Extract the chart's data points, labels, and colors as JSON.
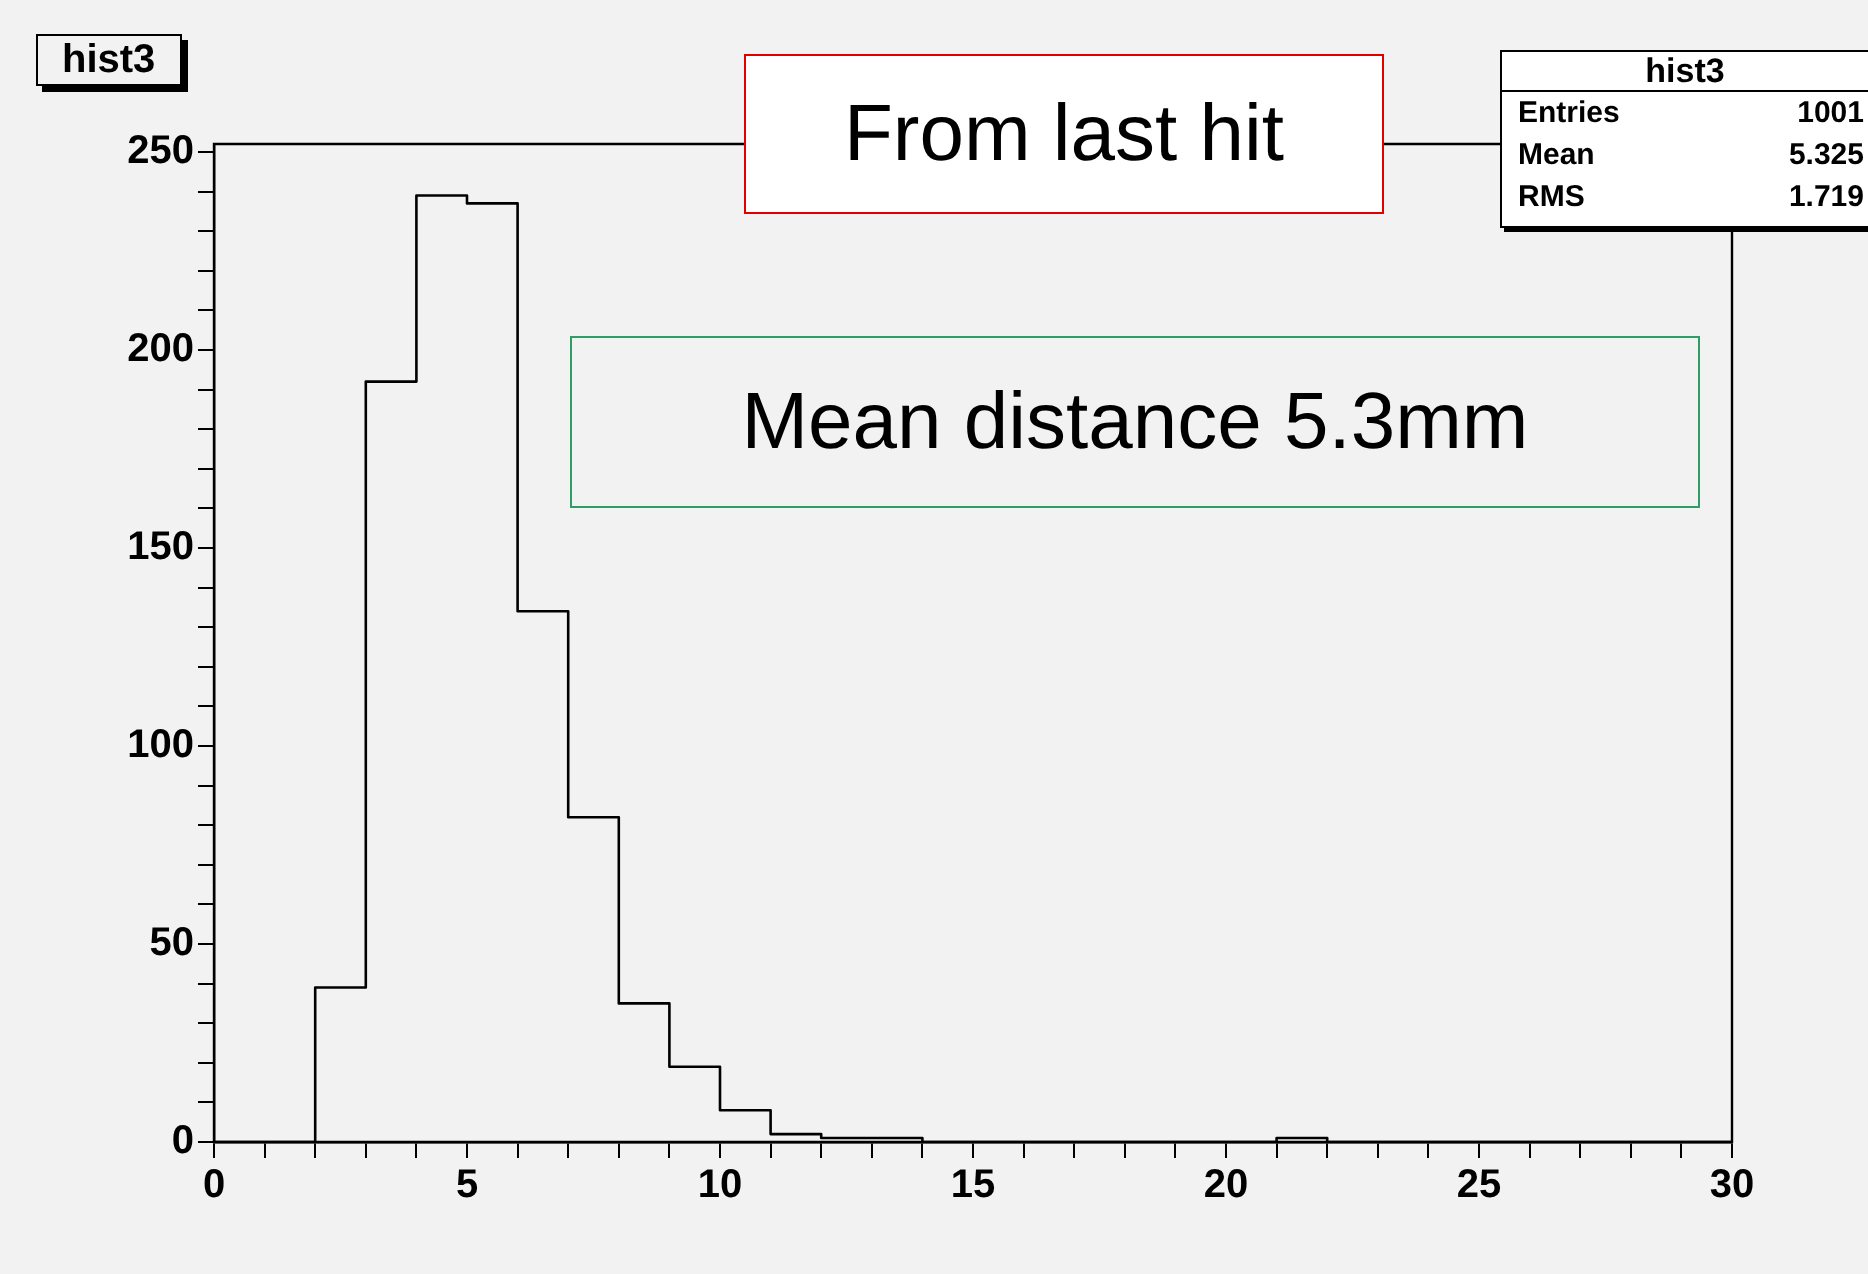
{
  "chart_data": {
    "type": "histogram",
    "title": "hist3",
    "bins": [
      0,
      1,
      2,
      3,
      4,
      5,
      6,
      7,
      8,
      9,
      10,
      11,
      12,
      13,
      14,
      15,
      16,
      17,
      18,
      19,
      20,
      21,
      22,
      23,
      24,
      25,
      26,
      27,
      28,
      29,
      30
    ],
    "values": [
      0,
      0,
      39,
      192,
      239,
      237,
      134,
      82,
      35,
      19,
      8,
      2,
      1,
      1,
      0,
      0,
      0,
      0,
      0,
      0,
      0,
      1,
      0,
      0,
      0,
      0,
      0,
      0,
      0,
      0
    ],
    "color": "#000000",
    "xlim": [
      0,
      30
    ],
    "xticks": [
      0,
      {
        "value": 1,
        "label": null
      },
      {
        "value": 2,
        "label": null
      },
      {
        "value": 3,
        "label": null
      },
      {
        "value": 4,
        "label": null
      },
      5,
      {
        "value": 6,
        "label": null
      },
      {
        "value": 7,
        "label": null
      },
      {
        "value": 8,
        "label": null
      },
      {
        "value": 9,
        "label": null
      },
      10,
      {
        "value": 11,
        "label": null
      },
      {
        "value": 12,
        "label": null
      },
      {
        "value": 13,
        "label": null
      },
      {
        "value": 14,
        "label": null
      },
      15,
      {
        "value": 16,
        "label": null
      },
      {
        "value": 17,
        "label": null
      },
      {
        "value": 18,
        "label": null
      },
      {
        "value": 19,
        "label": null
      },
      20,
      {
        "value": 21,
        "label": null
      },
      {
        "value": 22,
        "label": null
      },
      {
        "value": 23,
        "label": null
      },
      {
        "value": 24,
        "label": null
      },
      25,
      {
        "value": 26,
        "label": null
      },
      {
        "value": 27,
        "label": null
      },
      {
        "value": 28,
        "label": null
      },
      {
        "value": 29,
        "label": null
      },
      30
    ],
    "ylim": [
      0,
      252
    ],
    "yticks": [
      0,
      {
        "value": 10,
        "label": null
      },
      {
        "value": 20,
        "label": null
      },
      {
        "value": 30,
        "label": null
      },
      {
        "value": 40,
        "label": null
      },
      50,
      {
        "value": 60,
        "label": null
      },
      {
        "value": 70,
        "label": null
      },
      {
        "value": 80,
        "label": null
      },
      {
        "value": 90,
        "label": null
      },
      100,
      {
        "value": 110,
        "label": null
      },
      {
        "value": 120,
        "label": null
      },
      {
        "value": 130,
        "label": null
      },
      {
        "value": 140,
        "label": null
      },
      150,
      {
        "value": 160,
        "label": null
      },
      {
        "value": 170,
        "label": null
      },
      {
        "value": 180,
        "label": null
      },
      {
        "value": 190,
        "label": null
      },
      200,
      {
        "value": 210,
        "label": null
      },
      {
        "value": 220,
        "label": null
      },
      {
        "value": 230,
        "label": null
      },
      {
        "value": 240,
        "label": null
      },
      250
    ],
    "grid": false,
    "legend": false,
    "annotations": [
      "From last hit",
      "Mean distance 5.3mm",
      "hist3",
      "Entries",
      "1001",
      "Mean",
      "5.325",
      "RMS",
      "1.719"
    ]
  }
}
